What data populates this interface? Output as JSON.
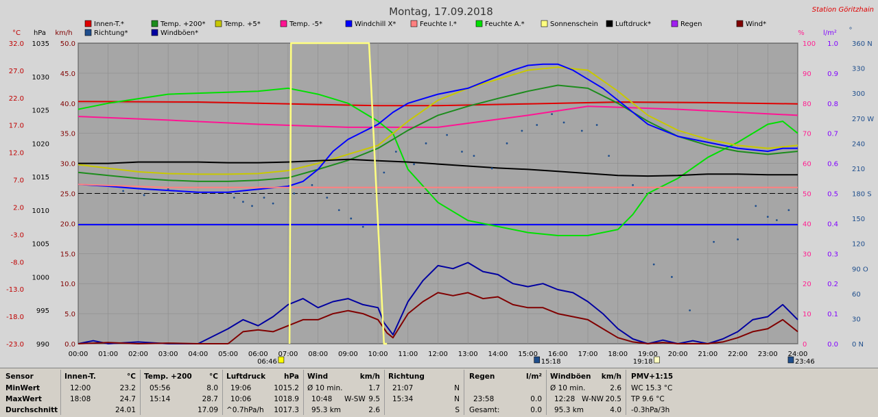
{
  "header": {
    "title": "Montag, 17.09.2018",
    "station": "Station Göritzhain"
  },
  "legend": [
    {
      "label": "Innen-T.*",
      "color": "#e00000"
    },
    {
      "label": "Temp. +200*",
      "color": "#1c8c1c"
    },
    {
      "label": "Temp. +5*",
      "color": "#c8c800"
    },
    {
      "label": "Temp. -5*",
      "color": "#ff1493"
    },
    {
      "label": "Windchill X*",
      "color": "#0000ff"
    },
    {
      "label": "Feuchte I.*",
      "color": "#ff8080"
    },
    {
      "label": "Feuchte A.*",
      "color": "#00e000"
    },
    {
      "label": "Sonnenschein",
      "color": "#ffff80"
    },
    {
      "label": "Luftdruck*",
      "color": "#000000"
    },
    {
      "label": "Regen",
      "color": "#a020f0"
    },
    {
      "label": "Wind*",
      "color": "#800000"
    },
    {
      "label": "Richtung*",
      "color": "#1f4e8c"
    },
    {
      "label": "Windböen*",
      "color": "#0000a0"
    }
  ],
  "axes": {
    "celsius": {
      "unit": "°C",
      "ticks": [
        "32.0",
        "27.0",
        "22.0",
        "17.0",
        "12.0",
        "7.0",
        "2.0",
        "-3.0",
        "-8.0",
        "-13.0",
        "-18.0",
        "-23.0"
      ]
    },
    "hpa": {
      "unit": "hPa",
      "ticks": [
        "1035",
        "1030",
        "1025",
        "1020",
        "1015",
        "1010",
        "1005",
        "1000",
        "995",
        "990"
      ]
    },
    "kmh": {
      "unit": "km/h",
      "ticks": [
        "50.0",
        "45.0",
        "40.0",
        "35.0",
        "30.0",
        "25.0",
        "20.0",
        "15.0",
        "10.0",
        "5.0",
        "0.0"
      ]
    },
    "percent": {
      "unit": "%",
      "ticks": [
        "100",
        "90",
        "80",
        "70",
        "60",
        "50",
        "40",
        "30",
        "20",
        "10",
        "0"
      ]
    },
    "rain": {
      "unit": "l/m²",
      "ticks": [
        "1.0",
        "0.9",
        "0.8",
        "0.7",
        "0.6",
        "0.5",
        "0.4",
        "0.3",
        "0.2",
        "0.1",
        "0.0"
      ]
    },
    "direction": {
      "unit": "°",
      "ticks": [
        "360 N",
        "330",
        "300",
        "270 W",
        "240",
        "210",
        "180 S",
        "150",
        "120",
        "90 O",
        "60",
        "30",
        "0 N"
      ]
    },
    "time": {
      "ticks": [
        "00:00",
        "01:00",
        "02:00",
        "03:00",
        "04:00",
        "05:00",
        "06:00",
        "07:00",
        "08:00",
        "09:00",
        "10:00",
        "11:00",
        "12:00",
        "13:00",
        "14:00",
        "15:00",
        "16:00",
        "17:00",
        "18:00",
        "19:00",
        "20:00",
        "21:00",
        "22:00",
        "23:00",
        "24:00"
      ]
    }
  },
  "markers": {
    "sunrise": "06:46",
    "moonrise": "15:18",
    "sunset": "19:18",
    "moonset": "23:46"
  },
  "chart_data": {
    "type": "line",
    "x_unit": "hour",
    "xlim": [
      0,
      24
    ],
    "series": [
      {
        "name": "Innen-T.*",
        "axis": "kmh",
        "color": "#e00000",
        "x": [
          0,
          4,
          8,
          10,
          12,
          15,
          18,
          21,
          24
        ],
        "y": [
          40.3,
          40.2,
          39.8,
          39.6,
          39.6,
          39.9,
          40.2,
          40.1,
          39.9
        ]
      },
      {
        "name": "Temp. -5*",
        "axis": "kmh",
        "color": "#ff1493",
        "x": [
          0,
          3,
          6,
          9,
          12,
          15,
          17,
          20,
          24
        ],
        "y": [
          37.8,
          37.2,
          36.5,
          36.0,
          36.0,
          38.0,
          39.5,
          39.0,
          38.0
        ]
      },
      {
        "name": "Feuchte A.*",
        "axis": "percent",
        "color": "#00e000",
        "x": [
          0,
          1,
          3,
          6,
          7,
          7.5,
          8,
          9,
          10,
          10.5,
          11,
          12,
          13,
          15,
          16,
          17,
          18,
          18.5,
          19,
          20,
          21,
          22,
          23,
          23.5,
          24
        ],
        "y": [
          78,
          80,
          83,
          84,
          85,
          84,
          83,
          80,
          74,
          70,
          58,
          47,
          41,
          37,
          36,
          36,
          38,
          43,
          50,
          55,
          62,
          67,
          73,
          74,
          70
        ]
      },
      {
        "name": "Temp. +200*",
        "axis": "kmh",
        "color": "#1c8c1c",
        "x": [
          0,
          1,
          2,
          3,
          4,
          5,
          6,
          7,
          8,
          9,
          10,
          11,
          12,
          13,
          14,
          15,
          16,
          17,
          18,
          19,
          20,
          21,
          22,
          23,
          24
        ],
        "y": [
          28.5,
          28.0,
          27.5,
          27.2,
          27.0,
          27.0,
          27.2,
          27.6,
          29.0,
          30.5,
          32.5,
          35.5,
          38.0,
          39.5,
          40.8,
          42.0,
          43.0,
          42.5,
          40.0,
          37.0,
          34.5,
          33.0,
          32.0,
          31.5,
          32.0
        ]
      },
      {
        "name": "Temp. +5*",
        "axis": "kmh",
        "color": "#c8c800",
        "x": [
          0,
          1,
          2,
          3,
          4,
          5,
          6,
          7,
          8,
          9,
          10,
          11,
          12,
          13,
          14,
          15,
          16,
          17,
          18,
          19,
          20,
          21,
          22,
          23,
          24
        ],
        "y": [
          29.8,
          29.2,
          28.6,
          28.3,
          28.2,
          28.2,
          28.3,
          28.8,
          30.0,
          31.5,
          33.0,
          37.0,
          40.5,
          42.5,
          44.0,
          45.5,
          46.0,
          45.5,
          42.0,
          38.0,
          35.5,
          34.0,
          33.0,
          32.5,
          33.0
        ]
      },
      {
        "name": "Windchill X*",
        "axis": "kmh",
        "color": "#0000ff",
        "x": [
          0,
          1,
          2,
          3,
          4,
          5,
          6,
          7,
          7.5,
          8,
          8.5,
          9,
          10,
          10.5,
          11,
          12,
          13,
          14,
          14.5,
          15,
          15.5,
          16,
          16.5,
          17,
          17.5,
          18,
          19,
          20,
          21,
          22,
          23,
          23.5,
          24
        ],
        "y": [
          26.5,
          26.2,
          25.8,
          25.5,
          25.2,
          25.2,
          25.7,
          26.2,
          27.0,
          29.0,
          32.0,
          34.0,
          36.5,
          38.5,
          40.0,
          41.5,
          42.5,
          44.5,
          45.5,
          46.3,
          46.5,
          46.5,
          45.5,
          44.0,
          42.5,
          40.5,
          36.5,
          34.5,
          33.5,
          32.5,
          32.0,
          32.5,
          32.5
        ]
      },
      {
        "name": "Feuchte I.*",
        "axis": "percent",
        "color": "#ff8080",
        "x": [
          0,
          3,
          6,
          9,
          12,
          15,
          18,
          21,
          24
        ],
        "y": [
          53,
          52,
          52,
          52,
          52,
          52,
          52,
          52,
          52
        ]
      },
      {
        "name": "Luftdruck*",
        "axis": "hpa",
        "color": "#000000",
        "x": [
          0,
          1,
          2,
          3,
          4,
          5,
          6,
          7,
          8,
          9,
          10,
          11,
          12,
          13,
          14,
          15,
          16,
          17,
          18,
          19,
          20,
          21,
          22,
          23,
          24
        ],
        "y": [
          1017.0,
          1017.0,
          1017.2,
          1017.2,
          1017.2,
          1017.1,
          1017.1,
          1017.2,
          1017.4,
          1017.6,
          1017.4,
          1017.2,
          1016.9,
          1016.6,
          1016.3,
          1016.1,
          1015.8,
          1015.5,
          1015.2,
          1015.1,
          1015.2,
          1015.4,
          1015.4,
          1015.3,
          1015.3
        ]
      },
      {
        "name": "Windböen*",
        "axis": "kmh",
        "color": "#0000a0",
        "x": [
          0,
          0.5,
          1,
          2,
          3,
          4,
          5,
          5.5,
          6,
          6.5,
          7,
          7.5,
          8,
          8.5,
          9,
          9.5,
          10,
          10.2,
          10.5,
          11,
          11.5,
          12,
          12.5,
          13,
          13.5,
          14,
          14.5,
          15,
          15.5,
          16,
          16.5,
          17,
          17.5,
          18,
          18.5,
          19,
          19.5,
          20,
          20.5,
          21,
          21.5,
          22,
          22.5,
          23,
          23.5,
          24
        ],
        "y": [
          0,
          0.5,
          0,
          0.3,
          0,
          0,
          2.5,
          4.0,
          3.0,
          4.5,
          6.5,
          7.5,
          6.0,
          7.0,
          7.5,
          6.5,
          6.0,
          3.5,
          1.5,
          7.0,
          10.5,
          13.0,
          12.5,
          13.5,
          12.0,
          11.5,
          10.0,
          9.5,
          10.0,
          9.0,
          8.5,
          7.0,
          5.0,
          2.5,
          0.8,
          0,
          0.6,
          0,
          0.5,
          0,
          0.8,
          2.0,
          4.0,
          4.5,
          6.5,
          4.0
        ]
      },
      {
        "name": "Wind*",
        "axis": "kmh",
        "color": "#800000",
        "x": [
          0,
          1,
          2,
          3,
          4,
          5,
          5.5,
          6,
          6.5,
          7,
          7.5,
          8,
          8.5,
          9,
          9.5,
          10,
          10.3,
          10.5,
          11,
          11.5,
          12,
          12.5,
          13,
          13.5,
          14,
          14.5,
          15,
          15.5,
          16,
          16.5,
          17,
          17.5,
          18,
          18.5,
          19,
          19.5,
          20,
          21,
          21.5,
          22,
          22.5,
          23,
          23.5,
          24
        ],
        "y": [
          0,
          0.2,
          0,
          0.1,
          0,
          0,
          2.0,
          2.3,
          2.0,
          3.0,
          4.0,
          4.0,
          5.0,
          5.5,
          5.0,
          4.0,
          1.8,
          1.0,
          5.0,
          7.0,
          8.5,
          8.0,
          8.5,
          7.5,
          7.8,
          6.5,
          6.0,
          6.0,
          5.0,
          4.5,
          4.0,
          2.5,
          1.0,
          0.3,
          0,
          0.2,
          0,
          0,
          0.3,
          1.0,
          2.0,
          2.5,
          4.0,
          2.0
        ]
      },
      {
        "name": "Sonnenschein",
        "axis": "percent",
        "color": "#ffff80",
        "x": [
          7.05,
          7.1,
          9.7,
          10.2,
          10.3
        ],
        "y": [
          0,
          100,
          100,
          0,
          0
        ]
      },
      {
        "name": "Richtung*",
        "axis": "direction",
        "color": "#1f4e8c",
        "style": "dots",
        "x": [
          1.5,
          2.2,
          3,
          5.2,
          5.5,
          5.8,
          6.2,
          6.5,
          7.2,
          7.8,
          8.3,
          8.7,
          9.1,
          9.5,
          10.2,
          10.6,
          11.2,
          11.6,
          12.3,
          12.8,
          13.2,
          13.8,
          14.3,
          14.8,
          15.3,
          15.8,
          16.2,
          16.8,
          17.3,
          17.7,
          18.5,
          19.2,
          19.8,
          20.4,
          21.2,
          22.0,
          22.6,
          23.0,
          23.3,
          23.7
        ],
        "y": [
          183,
          178,
          185,
          175,
          170,
          165,
          175,
          168,
          180,
          190,
          175,
          160,
          150,
          140,
          205,
          230,
          215,
          240,
          250,
          230,
          225,
          210,
          240,
          255,
          262,
          275,
          265,
          255,
          262,
          225,
          190,
          95,
          80,
          40,
          122,
          125,
          165,
          152,
          148,
          160
        ]
      }
    ]
  },
  "footer": {
    "sensor": {
      "title": "Sensor",
      "rows": [
        "MinWert",
        "MaxWert",
        "Durchschnitt"
      ]
    },
    "innen": {
      "title": "Innen-T.",
      "unit": "°C",
      "rows": [
        [
          "12:00",
          "23.2"
        ],
        [
          "18:08",
          "24.7"
        ],
        [
          "",
          "24.01"
        ]
      ]
    },
    "temp": {
      "title": "Temp. +200",
      "unit": "°C",
      "rows": [
        [
          "05:56",
          "8.0"
        ],
        [
          "15:14",
          "28.7"
        ],
        [
          "",
          "17.09"
        ]
      ]
    },
    "luftdruck": {
      "title": "Luftdruck",
      "unit": "hPa",
      "rows": [
        [
          "19:06",
          "1015.2"
        ],
        [
          "10:06",
          "1018.9"
        ],
        [
          "^0.7hPa/h",
          "1017.3"
        ]
      ]
    },
    "wind": {
      "title": "Wind",
      "unit": "km/h",
      "rows": [
        [
          "Ø 10 min.",
          "",
          "1.7"
        ],
        [
          "10:48",
          "W-SW",
          "9.5"
        ],
        [
          "95.3 km",
          "",
          "2.6"
        ]
      ]
    },
    "richtung": {
      "title": "Richtung",
      "rows": [
        [
          "21:07",
          "N"
        ],
        [
          "15:34",
          "N"
        ],
        [
          "",
          "S"
        ]
      ]
    },
    "regen": {
      "title": "Regen",
      "unit": "l/m²",
      "rows": [
        [
          "",
          ""
        ],
        [
          "23:58",
          "0.0"
        ],
        [
          "Gesamt:",
          "0.0"
        ]
      ]
    },
    "windboeen": {
      "title": "Windböen",
      "unit": "km/h",
      "rows": [
        [
          "Ø 10 min.",
          "",
          "2.6"
        ],
        [
          "12:28",
          "W-NW",
          "20.5"
        ],
        [
          "95.3 km",
          "",
          "4.0"
        ]
      ]
    },
    "pmv": {
      "title": "PMV+1:15",
      "rows": [
        "WC 15.3 °C",
        "TP 9.6 °C",
        "-0.3hPa/3h"
      ]
    }
  }
}
